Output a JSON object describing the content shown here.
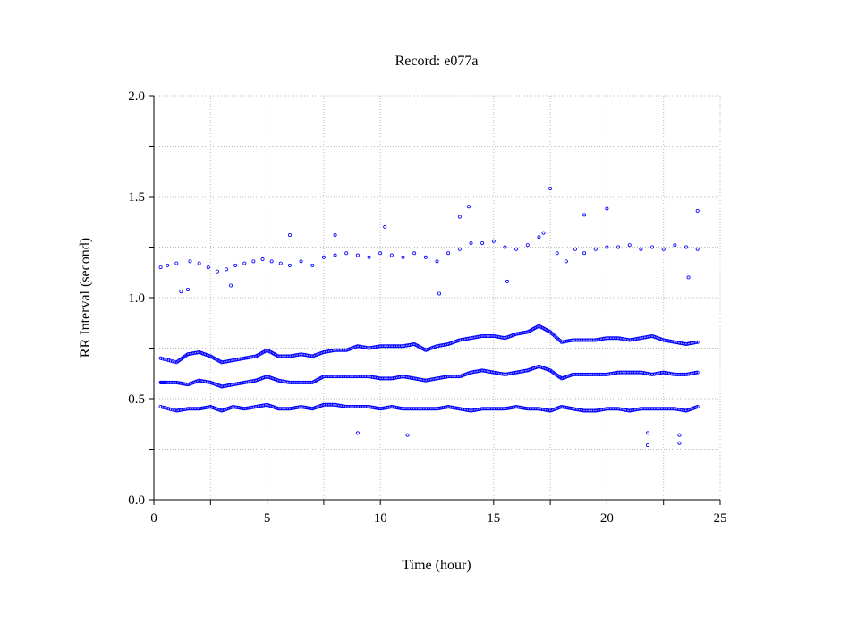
{
  "chart_data": {
    "type": "scatter",
    "title": "Record:  e077a",
    "xlabel": "Time (hour)",
    "ylabel": "RR Interval (second)",
    "xlim": [
      0,
      25
    ],
    "ylim": [
      0,
      2.0
    ],
    "x_ticks": [
      "0",
      "5",
      "10",
      "15",
      "20",
      "25"
    ],
    "y_ticks": [
      "0.0",
      "0.5",
      "1.0",
      "1.5",
      "2.0"
    ],
    "grid": true,
    "marker_color": "#0000ff",
    "marker": "open-circle",
    "series": [
      {
        "x": [
          0.3,
          0.5,
          1,
          1.5,
          2,
          2.5,
          3,
          3.5,
          4,
          4.5,
          5,
          5.5,
          6,
          6.5,
          7,
          7.5,
          8,
          8.5,
          9,
          9.5,
          10,
          10.5,
          11,
          11.5,
          12,
          12.5,
          13,
          13.5,
          14,
          14.5,
          15,
          15.5,
          16,
          16.5,
          17,
          17.5,
          18,
          18.5,
          19,
          19.5,
          20,
          20.5,
          21,
          21.5,
          22,
          22.5,
          23,
          23.5,
          24
        ],
        "y": [
          0.58,
          0.58,
          0.58,
          0.57,
          0.59,
          0.58,
          0.56,
          0.57,
          0.58,
          0.59,
          0.61,
          0.59,
          0.58,
          0.58,
          0.58,
          0.61,
          0.61,
          0.61,
          0.61,
          0.61,
          0.6,
          0.6,
          0.61,
          0.6,
          0.59,
          0.6,
          0.61,
          0.61,
          0.63,
          0.64,
          0.63,
          0.62,
          0.63,
          0.64,
          0.66,
          0.64,
          0.6,
          0.62,
          0.62,
          0.62,
          0.62,
          0.63,
          0.63,
          0.63,
          0.62,
          0.63,
          0.62,
          0.62,
          0.63
        ]
      },
      {
        "x": [
          0.3,
          1,
          1.5,
          2,
          2.5,
          3,
          3.5,
          4,
          4.5,
          5,
          5.5,
          6,
          6.5,
          7,
          7.5,
          8,
          8.5,
          9,
          9.5,
          10,
          10.5,
          11,
          11.5,
          12,
          12.5,
          13,
          13.5,
          14,
          14.5,
          15,
          15.5,
          16,
          16.5,
          17,
          17.5,
          18,
          18.5,
          19,
          19.5,
          20,
          20.5,
          21,
          21.5,
          22,
          22.5,
          23,
          23.5,
          24
        ],
        "y": [
          0.7,
          0.68,
          0.72,
          0.73,
          0.71,
          0.68,
          0.69,
          0.7,
          0.71,
          0.74,
          0.71,
          0.71,
          0.72,
          0.71,
          0.73,
          0.74,
          0.74,
          0.76,
          0.75,
          0.76,
          0.76,
          0.76,
          0.77,
          0.74,
          0.76,
          0.77,
          0.79,
          0.8,
          0.81,
          0.81,
          0.8,
          0.82,
          0.83,
          0.86,
          0.83,
          0.78,
          0.79,
          0.79,
          0.79,
          0.8,
          0.8,
          0.79,
          0.8,
          0.81,
          0.79,
          0.78,
          0.77,
          0.78
        ]
      },
      {
        "x": [
          0.3,
          1,
          1.5,
          2,
          2.5,
          3,
          3.5,
          4,
          4.5,
          5,
          5.5,
          6,
          6.5,
          7,
          7.5,
          8,
          8.5,
          9,
          9.5,
          10,
          10.5,
          11,
          11.5,
          12,
          12.5,
          13,
          13.5,
          14,
          14.5,
          15,
          15.5,
          16,
          16.5,
          17,
          17.5,
          18,
          18.5,
          19,
          19.5,
          20,
          20.5,
          21,
          21.5,
          22,
          22.5,
          23,
          23.5,
          24
        ],
        "y": [
          0.46,
          0.44,
          0.45,
          0.45,
          0.46,
          0.44,
          0.46,
          0.45,
          0.46,
          0.47,
          0.45,
          0.45,
          0.46,
          0.45,
          0.47,
          0.47,
          0.46,
          0.46,
          0.46,
          0.45,
          0.46,
          0.45,
          0.45,
          0.45,
          0.45,
          0.46,
          0.45,
          0.44,
          0.45,
          0.45,
          0.45,
          0.46,
          0.45,
          0.45,
          0.44,
          0.46,
          0.45,
          0.44,
          0.44,
          0.45,
          0.45,
          0.44,
          0.45,
          0.45,
          0.45,
          0.45,
          0.44,
          0.46
        ]
      },
      {
        "x": [
          0.3,
          0.6,
          1,
          1.2,
          1.6,
          2,
          2.4,
          2.8,
          3.2,
          3.6,
          4,
          4.4,
          4.8,
          5.2,
          5.6,
          6,
          6.5,
          7,
          7.5,
          8,
          8.5,
          9,
          9.5,
          10,
          10.5,
          11,
          11.5,
          12,
          12.5,
          13,
          13.5,
          14,
          14.5,
          15,
          15.5,
          16,
          16.5,
          17,
          17.2,
          17.8,
          18.2,
          18.6,
          19,
          19.5,
          20,
          20.5,
          21,
          21.5,
          22,
          22.5,
          23,
          23.5,
          24
        ],
        "y": [
          1.15,
          1.16,
          1.17,
          1.03,
          1.18,
          1.17,
          1.15,
          1.13,
          1.14,
          1.16,
          1.17,
          1.18,
          1.19,
          1.18,
          1.17,
          1.16,
          1.18,
          1.16,
          1.2,
          1.21,
          1.22,
          1.21,
          1.2,
          1.22,
          1.21,
          1.2,
          1.22,
          1.2,
          1.18,
          1.22,
          1.24,
          1.27,
          1.27,
          1.28,
          1.25,
          1.24,
          1.26,
          1.3,
          1.32,
          1.22,
          1.18,
          1.24,
          1.22,
          1.24,
          1.25,
          1.25,
          1.26,
          1.24,
          1.25,
          1.24,
          1.26,
          1.25,
          1.24
        ]
      },
      {
        "x": [
          17.5,
          13.5,
          13.9,
          20,
          19,
          24,
          11.2,
          9,
          21.8,
          21.8,
          23.2,
          23.2,
          6,
          8,
          10.2,
          1.5,
          3.4,
          12.6,
          15.6,
          23.6
        ],
        "y": [
          1.54,
          1.4,
          1.45,
          1.44,
          1.41,
          1.43,
          0.32,
          0.33,
          0.27,
          0.33,
          0.28,
          0.32,
          1.31,
          1.31,
          1.35,
          1.04,
          1.06,
          1.02,
          1.08,
          1.1
        ]
      }
    ]
  }
}
